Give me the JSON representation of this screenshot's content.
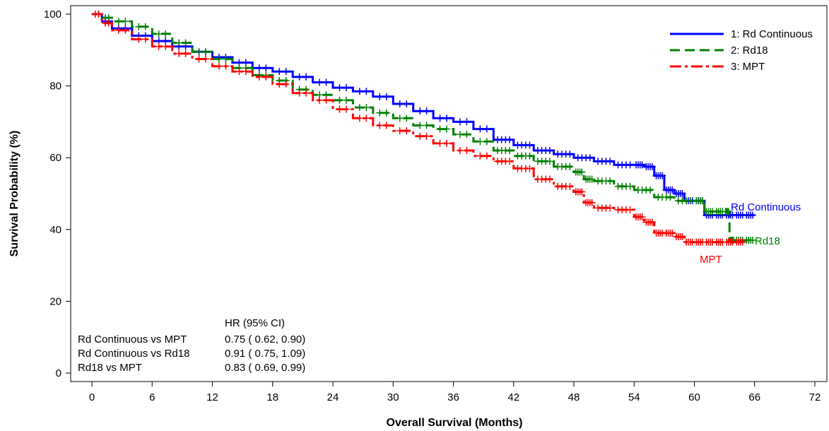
{
  "chart_data": {
    "type": "line",
    "title": "",
    "xlabel": "Overall Survival (Months)",
    "ylabel": "Survival Probability (%)",
    "xlim": [
      0,
      72
    ],
    "ylim": [
      0,
      100
    ],
    "xticks": [
      0,
      6,
      12,
      18,
      24,
      30,
      36,
      42,
      48,
      54,
      60,
      66,
      72
    ],
    "yticks": [
      0,
      20,
      40,
      60,
      80,
      100
    ],
    "grid": false,
    "legend_position": "top-right",
    "colors": {
      "rd_continuous": "#0000ff",
      "rd18": "#008000",
      "mpt": "#ff0000"
    },
    "series": [
      {
        "name": "1: Rd Continuous",
        "end_label": "Rd Continuous",
        "color": "#0000ff",
        "dash": "solid",
        "x": [
          0,
          1,
          2,
          4,
          6,
          8,
          10,
          12,
          14,
          16,
          18,
          20,
          22,
          24,
          26,
          28,
          30,
          32,
          34,
          36,
          38,
          40,
          42,
          44,
          46,
          48,
          50,
          52,
          54,
          55,
          56,
          57,
          58,
          59,
          60,
          61,
          62,
          63,
          64,
          65,
          66
        ],
        "y": [
          100,
          98,
          96,
          94,
          92.5,
          91,
          89.5,
          88,
          86.5,
          85,
          84,
          82.5,
          81,
          79.5,
          78.5,
          77,
          75,
          73,
          71,
          70,
          68,
          65,
          63.5,
          62,
          61,
          60,
          59,
          58,
          58,
          57.5,
          55,
          51,
          50,
          48,
          48,
          44,
          44,
          44,
          44,
          44,
          44
        ]
      },
      {
        "name": "2: Rd18",
        "end_label": "Rd18",
        "color": "#008000",
        "dash": "dashed",
        "x": [
          0,
          1,
          2,
          4,
          6,
          8,
          10,
          12,
          14,
          16,
          18,
          20,
          22,
          24,
          26,
          28,
          30,
          32,
          34,
          36,
          38,
          40,
          42,
          44,
          46,
          48,
          49,
          50,
          52,
          54,
          56,
          58,
          60,
          61,
          62,
          63,
          63.5,
          64,
          65,
          66
        ],
        "y": [
          100,
          99,
          98,
          96.5,
          94.5,
          92,
          89.5,
          87.5,
          85,
          83,
          81.5,
          79,
          77.5,
          76,
          74,
          72.5,
          71,
          69,
          68,
          66.5,
          64.5,
          62,
          60.5,
          59,
          57.5,
          56,
          54,
          53.5,
          52,
          51,
          49,
          48,
          48,
          45,
          45,
          45,
          37,
          37,
          37,
          37
        ]
      },
      {
        "name": "3: MPT",
        "end_label": "MPT",
        "color": "#ff0000",
        "dash": "dashdot",
        "x": [
          0,
          1,
          2,
          4,
          6,
          8,
          10,
          12,
          14,
          16,
          18,
          20,
          22,
          24,
          26,
          28,
          30,
          32,
          34,
          36,
          38,
          40,
          42,
          44,
          46,
          48,
          49,
          50,
          52,
          54,
          55,
          56,
          57,
          58,
          59,
          60,
          61,
          62,
          63,
          64,
          65
        ],
        "y": [
          100,
          97.5,
          95.5,
          93,
          91,
          89,
          87.5,
          85.5,
          84,
          82.5,
          80.5,
          78,
          76,
          73.5,
          71,
          69,
          67.5,
          66,
          64,
          62,
          60.5,
          59,
          57,
          54,
          52,
          50.5,
          47.5,
          46,
          45.5,
          43.5,
          42,
          39,
          39,
          38,
          36.5,
          36.5,
          36.5,
          36.5,
          36.5,
          36.5,
          36.5
        ]
      }
    ],
    "hr_table": {
      "header": "HR (95% CI)",
      "rows": [
        {
          "label": "Rd Continuous vs MPT",
          "value": "0.75 ( 0.62,  0.90)"
        },
        {
          "label": "Rd Continuous vs Rd18",
          "value": "0.91 ( 0.75,  1.09)"
        },
        {
          "label": "Rd18 vs MPT",
          "value": "0.83 ( 0.69,  0.99)"
        }
      ]
    }
  }
}
